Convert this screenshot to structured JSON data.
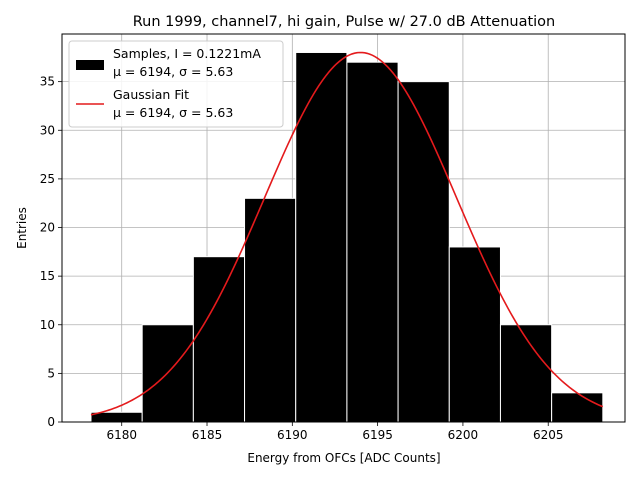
{
  "chart_data": {
    "type": "bar",
    "title": "Run 1999, channel7, hi gain, Pulse w/ 27.0 dB Attenuation",
    "xlabel": "Energy from OFCs [ADC Counts]",
    "ylabel": "Entries",
    "xlim": [
      6176.5,
      6209.5
    ],
    "ylim": [
      0,
      39.9
    ],
    "grid": true,
    "xticks": [
      6180,
      6185,
      6190,
      6195,
      6200,
      6205
    ],
    "yticks": [
      0,
      5,
      10,
      15,
      20,
      25,
      30,
      35
    ],
    "bin_edges": [
      6178.2,
      6181.2,
      6184.2,
      6187.2,
      6190.2,
      6193.2,
      6196.2,
      6199.2,
      6202.2,
      6205.2,
      6208.2
    ],
    "values": [
      1,
      10,
      17,
      23,
      38,
      37,
      35,
      18,
      10,
      3
    ],
    "series": [
      {
        "name": "Samples",
        "legend_label_line1": "Samples, I = 0.1221mA",
        "legend_label_line2": "μ = 6194, σ = 5.63",
        "color": "#000000",
        "edgecolor": "#ffffff"
      },
      {
        "name": "Gaussian Fit",
        "legend_label_line1": "Gaussian Fit",
        "legend_label_line2": "μ = 6194, σ = 5.63",
        "color": "#e41a1c",
        "fit": {
          "amplitude": 38,
          "mu": 6194,
          "sigma": 5.63,
          "x_range": [
            6178.2,
            6208.2
          ]
        }
      }
    ],
    "legend_position": "top-left"
  }
}
